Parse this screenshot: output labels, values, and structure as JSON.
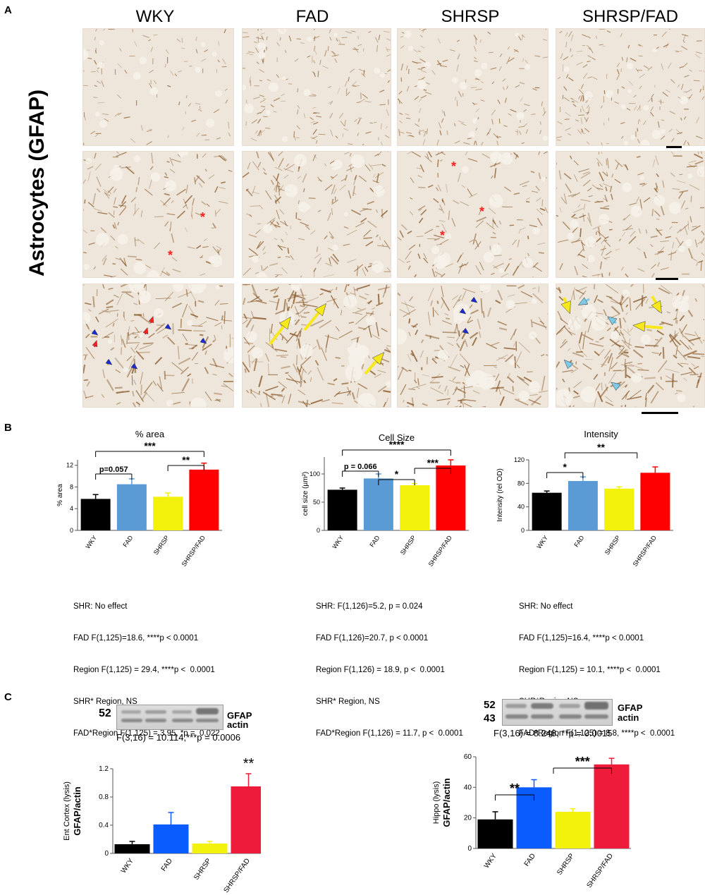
{
  "panel_letters": {
    "a": "A",
    "b": "B",
    "c": "C"
  },
  "panelA": {
    "columns": [
      "WKY",
      "FAD",
      "SHRSP",
      "SHRSP/FAD"
    ],
    "row_label": "Astrocytes (GFAP)"
  },
  "colors": {
    "WKY": "#000000",
    "FAD": "#5b9bd5",
    "SHRSP": "#f2f20d",
    "SHRSP/FAD": "#ff0000",
    "C_FAD": "#0a5cff",
    "C_SHRSP": "#f2f20d",
    "C_SHRSPFAD": "#ee1b3a",
    "stain": "#8a5a2b",
    "arrow": "#f7e81c",
    "asterisk": "#ff2020",
    "arrowhead_blue": "#1a2ad6"
  },
  "panelB": {
    "stats": [
      [
        "SHR: No effect",
        "FAD F(1,125)=18.6, ****p < 0.0001",
        "Region F(1,125) = 29.4, ****p <  0.0001",
        "SHR* Region, NS",
        "FAD*Region F(1,125) = 3.95, *p =  0.022"
      ],
      [
        "SHR: F(1,126)=5.2, p = 0.024",
        "FAD F(1,126)=20.7, p < 0.0001",
        "Region F(1,126) = 18.9, p <  0.0001",
        "SHR* Region, NS",
        "FAD*Region F(1,126) = 11.7, p <  0.0001"
      ],
      [
        "SHR: No effect",
        "FAD F(1,125)=16.4, ****p < 0.0001",
        "Region F(1,125) = 10.1, ****p <  0.0001",
        "SHR*Region NS",
        "FAD*Region F(1,125) = 8.8, ****p <  0.0001"
      ]
    ]
  },
  "panelC": {
    "left_blot": {
      "marker": "52",
      "labels": [
        "GFAP",
        "actin"
      ],
      "stat": "F(3,16) = 10.114,***p = 0.0006"
    },
    "right_blot": {
      "markers": [
        "52",
        "43"
      ],
      "labels": [
        "GFAP",
        "actin"
      ],
      "stat": "F(3,16) = 8.248, **p = 0.0015"
    }
  },
  "chart_data": [
    {
      "type": "bar",
      "title": "% area",
      "ylabel": "% area",
      "categories": [
        "WKY",
        "FAD",
        "SHRSP",
        "SHRSP/FAD"
      ],
      "values": [
        5.8,
        8.5,
        6.2,
        11.2
      ],
      "errors": [
        0.8,
        1.0,
        0.7,
        1.2
      ],
      "ylim": [
        0,
        13
      ],
      "yticks": [
        0,
        4,
        8,
        12
      ],
      "annotations": [
        {
          "from": 0,
          "to": 3,
          "label": "***"
        },
        {
          "from": 0,
          "to": 1,
          "label": "p=0.057"
        },
        {
          "from": 2,
          "to": 3,
          "label": "**"
        }
      ]
    },
    {
      "type": "bar",
      "title": "Cell Size",
      "ylabel": "cell size (µm²)",
      "categories": [
        "WKY",
        "FAD",
        "SHRSP",
        "SHRSP/FAD"
      ],
      "values": [
        72,
        92,
        80,
        115
      ],
      "errors": [
        3,
        8,
        3,
        10
      ],
      "ylim": [
        0,
        130
      ],
      "yticks": [
        0,
        50,
        100
      ],
      "annotations": [
        {
          "from": 0,
          "to": 3,
          "label": "****"
        },
        {
          "from": 0,
          "to": 1,
          "label": "p = 0.066"
        },
        {
          "from": 1,
          "to": 2,
          "label": "*"
        },
        {
          "from": 2,
          "to": 3,
          "label": "***"
        }
      ]
    },
    {
      "type": "bar",
      "title": "Intensity",
      "ylabel": "Intensity (rel OD)",
      "categories": [
        "WKY",
        "FAD",
        "SHRSP",
        "SHRSP/FAD"
      ],
      "values": [
        64,
        84,
        71,
        98
      ],
      "errors": [
        3,
        7,
        3,
        10
      ],
      "ylim": [
        0,
        120
      ],
      "yticks": [
        0,
        40,
        80,
        120
      ],
      "annotations": [
        {
          "from": 0,
          "to": 1,
          "label": "*"
        },
        {
          "from": 0.5,
          "to": 2.5,
          "label": "**"
        }
      ]
    },
    {
      "type": "bar",
      "ylabel": "Ent Cortex (lysis)\nGFAP/actin",
      "categories": [
        "WKY",
        "FAD",
        "SHRSP",
        "SHRSP/FAD"
      ],
      "values": [
        0.13,
        0.41,
        0.14,
        0.95
      ],
      "errors": [
        0.04,
        0.17,
        0.03,
        0.18
      ],
      "ylim": [
        0,
        1.2
      ],
      "yticks": [
        0,
        0.4,
        0.8,
        1.2
      ],
      "annotations": [
        {
          "over": 3,
          "label": "**"
        }
      ]
    },
    {
      "type": "bar",
      "ylabel": "Hippo (lysis)\nGFAP/actin",
      "categories": [
        "WKY",
        "FAD",
        "SHRSP",
        "SHRSP/FAD"
      ],
      "values": [
        19,
        40,
        24,
        55
      ],
      "errors": [
        5,
        5,
        2,
        4
      ],
      "ylim": [
        0,
        60
      ],
      "yticks": [
        0,
        20,
        40,
        60
      ],
      "annotations": [
        {
          "from": 0,
          "to": 1,
          "label": "**"
        },
        {
          "from": 1.5,
          "to": 3,
          "label": "***"
        }
      ]
    }
  ]
}
